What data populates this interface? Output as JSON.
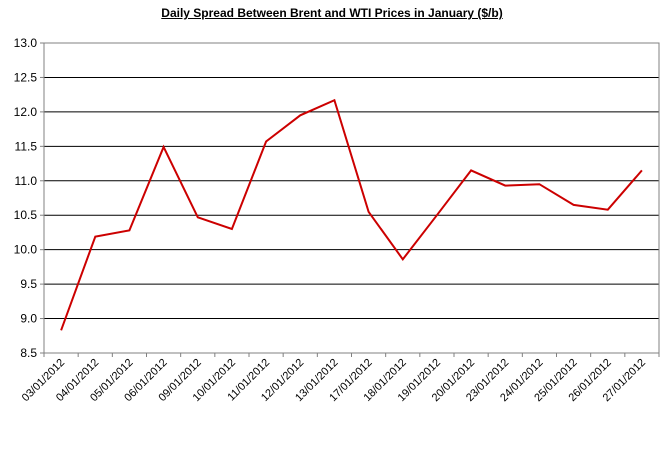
{
  "chart_data": {
    "type": "line",
    "title": "Daily Spread Between Brent and WTI Prices in  January ($/b)",
    "xlabel": "",
    "ylabel": "",
    "ylim": [
      8.5,
      13.0
    ],
    "yticks": [
      "8.5",
      "9.0",
      "9.5",
      "10.0",
      "10.5",
      "11.0",
      "11.5",
      "12.0",
      "12.5",
      "13.0"
    ],
    "grid": true,
    "legend": "none",
    "line_color": "#cc0000",
    "categories": [
      "03/01/2012",
      "04/01/2012",
      "05/01/2012",
      "06/01/2012",
      "09/01/2012",
      "10/01/2012",
      "11/01/2012",
      "12/01/2012",
      "13/01/2012",
      "17/01/2012",
      "18/01/2012",
      "19/01/2012",
      "20/01/2012",
      "23/01/2012",
      "24/01/2012",
      "25/01/2012",
      "26/01/2012",
      "27/01/2012"
    ],
    "series": [
      {
        "values": [
          8.83,
          10.19,
          10.28,
          11.49,
          10.47,
          10.3,
          11.57,
          11.95,
          12.17,
          10.55,
          9.86,
          10.5,
          11.15,
          10.93,
          10.95,
          10.65,
          10.58,
          11.15
        ]
      }
    ]
  }
}
